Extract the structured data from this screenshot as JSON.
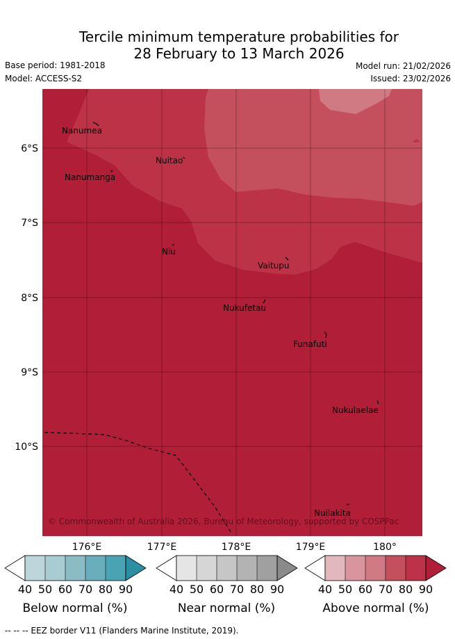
{
  "title": {
    "line1": "Tercile minimum temperature probabilities for",
    "line2": "28 February to 13 March 2026"
  },
  "meta": {
    "base_period": "Base period: 1981-2018",
    "model": "Model: ACCESS-S2",
    "model_run": "Model run: 21/02/2026",
    "issued": "Issued: 23/02/2026"
  },
  "map": {
    "lon_ticks": [
      "176°E",
      "177°E",
      "178°E",
      "179°E",
      "180°"
    ],
    "lat_ticks": [
      "6°S",
      "7°S",
      "8°S",
      "9°S",
      "10°S"
    ],
    "islands": [
      {
        "name": "Nanumea"
      },
      {
        "name": "Nuitao"
      },
      {
        "name": "Nanumanga"
      },
      {
        "name": "Niu"
      },
      {
        "name": "Vaitupu"
      },
      {
        "name": "Nukufetau"
      },
      {
        "name": "Funafuti"
      },
      {
        "name": "Nukulaelae"
      },
      {
        "name": "Nuilakita"
      }
    ],
    "credit": "© Commonwealth of Australia 2026, Bureau of Meteorology, supported by COSPPac",
    "colors": {
      "above_60": "#d07a84",
      "above_70": "#c4505e",
      "above_80": "#bc3347",
      "above_90": "#b01e37"
    }
  },
  "colorbars": [
    {
      "title": "Below normal (%)",
      "ticks": [
        "40",
        "50",
        "60",
        "70",
        "80",
        "90"
      ],
      "colors": [
        "#bdd6dc",
        "#a8ccd1",
        "#8bbcc6",
        "#6aaebd",
        "#4aa3b3",
        "#2b8fa3"
      ]
    },
    {
      "title": "Near normal (%)",
      "ticks": [
        "40",
        "50",
        "60",
        "70",
        "80",
        "90"
      ],
      "colors": [
        "#e5e5e5",
        "#d6d6d6",
        "#c6c6c6",
        "#b3b3b3",
        "#a0a0a0",
        "#8a8a8a"
      ]
    },
    {
      "title": "Above normal (%)",
      "ticks": [
        "40",
        "50",
        "60",
        "70",
        "80",
        "90"
      ],
      "colors": [
        "#e2b8be",
        "#d9959e",
        "#d07a84",
        "#c4505e",
        "#bc3347",
        "#b01e37"
      ]
    }
  ],
  "footnote": "-- -- -- EEZ border V11 (Flanders Marine Institute, 2019)."
}
